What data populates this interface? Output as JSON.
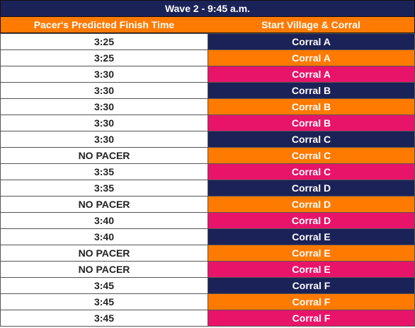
{
  "title": "Wave 2 - 9:45 a.m.",
  "headers": {
    "finish_time": "Pacer's Predicted Finish Time",
    "corral": "Start Village & Corral"
  },
  "colors": {
    "navy": "#1b2257",
    "orange": "#ff7a00",
    "pink": "#e8146a"
  },
  "rows": [
    {
      "time": "3:25",
      "corral": "Corral A",
      "color": "#1b2257"
    },
    {
      "time": "3:25",
      "corral": "Corral A",
      "color": "#ff7a00"
    },
    {
      "time": "3:30",
      "corral": "Corral A",
      "color": "#e8146a"
    },
    {
      "time": "3:30",
      "corral": "Corral B",
      "color": "#1b2257"
    },
    {
      "time": "3:30",
      "corral": "Corral B",
      "color": "#ff7a00"
    },
    {
      "time": "3:30",
      "corral": "Corral B",
      "color": "#e8146a"
    },
    {
      "time": "3:30",
      "corral": "Corral C",
      "color": "#1b2257"
    },
    {
      "time": "NO PACER",
      "corral": "Corral C",
      "color": "#ff7a00"
    },
    {
      "time": "3:35",
      "corral": "Corral C",
      "color": "#e8146a"
    },
    {
      "time": "3:35",
      "corral": "Corral D",
      "color": "#1b2257"
    },
    {
      "time": "NO PACER",
      "corral": "Corral D",
      "color": "#ff7a00"
    },
    {
      "time": "3:40",
      "corral": "Corral D",
      "color": "#e8146a"
    },
    {
      "time": "3:40",
      "corral": "Corral E",
      "color": "#1b2257"
    },
    {
      "time": "NO PACER",
      "corral": "Corral E",
      "color": "#ff7a00"
    },
    {
      "time": "NO PACER",
      "corral": "Corral E",
      "color": "#e8146a"
    },
    {
      "time": "3:45",
      "corral": "Corral F",
      "color": "#1b2257"
    },
    {
      "time": "3:45",
      "corral": "Corral F",
      "color": "#ff7a00"
    },
    {
      "time": "3:45",
      "corral": "Corral F",
      "color": "#e8146a"
    }
  ]
}
